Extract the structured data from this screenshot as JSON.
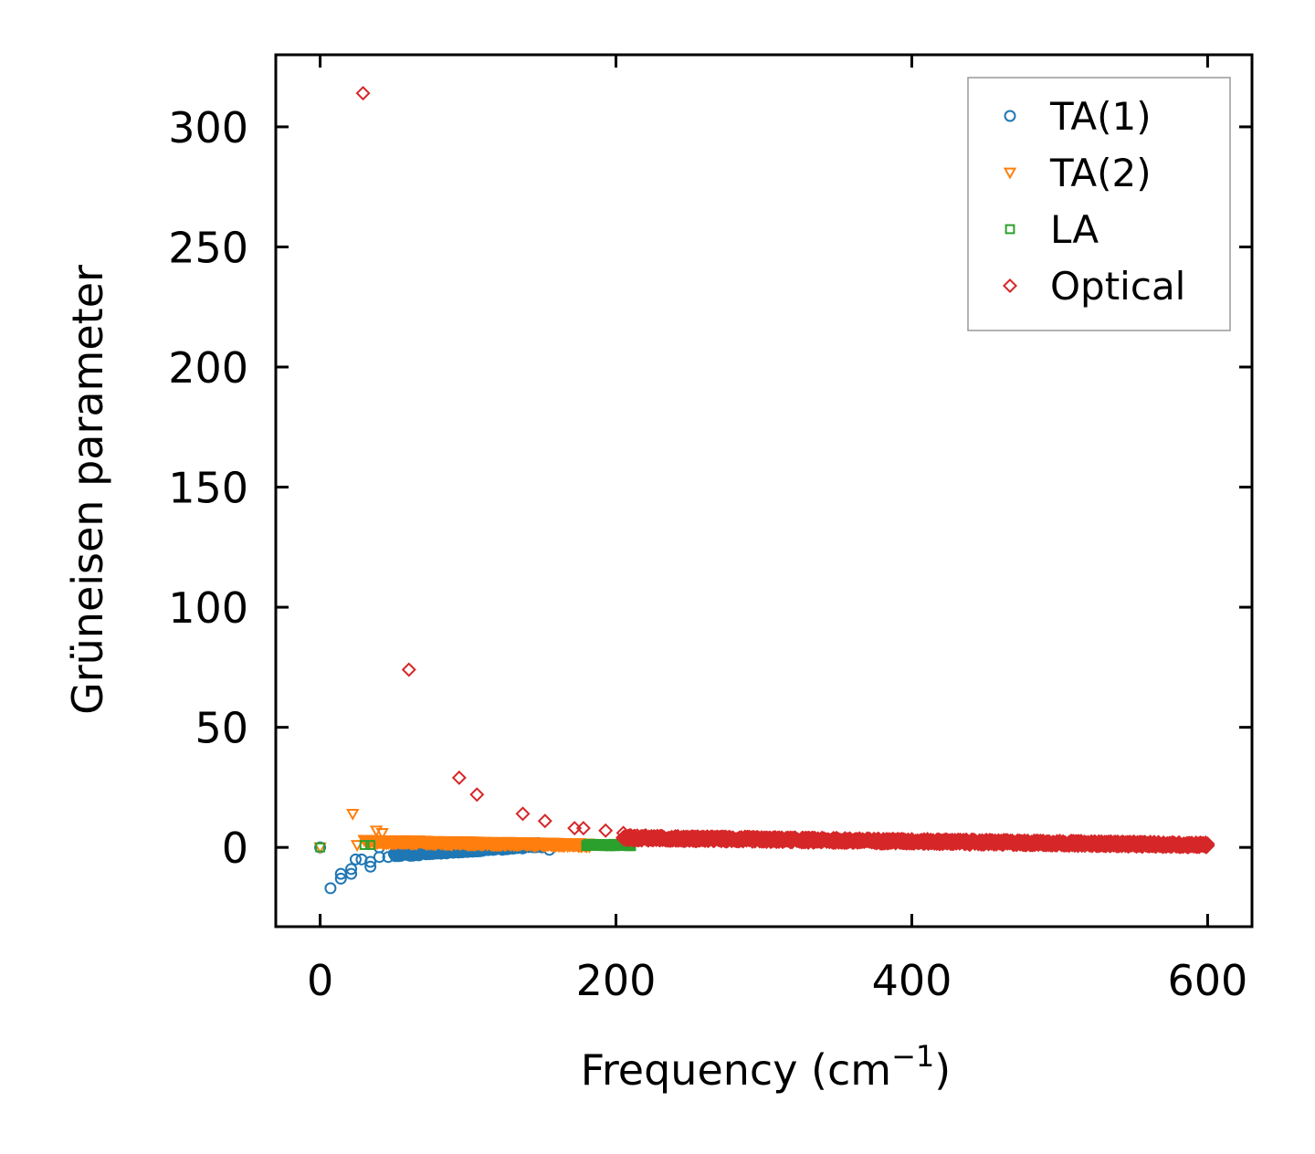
{
  "chart_data": {
    "type": "scatter",
    "title": "",
    "xlabel": "Frequency (cm",
    "xlabel_sup": "−1",
    "xlabel_close": ")",
    "ylabel": "Grüneisen parameter",
    "xlim": [
      -30,
      630
    ],
    "ylim": [
      -33,
      330
    ],
    "xticks": [
      0,
      200,
      400,
      600
    ],
    "yticks": [
      0,
      50,
      100,
      150,
      200,
      250,
      300
    ],
    "xtick_labels": [
      "0",
      "200",
      "400",
      "600"
    ],
    "ytick_labels": [
      "0",
      "50",
      "100",
      "150",
      "200",
      "250",
      "300"
    ],
    "grid": false,
    "legend_position": "top-right",
    "series": [
      {
        "name": "TA(1)",
        "marker": "circle",
        "color": "#1f77b4",
        "points": [
          [
            0,
            0
          ],
          [
            7,
            -17
          ],
          [
            14,
            -13
          ],
          [
            14,
            -11
          ],
          [
            21,
            -9
          ],
          [
            21,
            -11
          ],
          [
            24,
            -5
          ],
          [
            28,
            -5
          ],
          [
            34,
            -8
          ],
          [
            34,
            -6
          ],
          [
            40,
            -4
          ],
          [
            40,
            0
          ],
          [
            46,
            -4
          ],
          [
            52,
            -3
          ],
          [
            56,
            -2
          ],
          [
            60,
            0
          ],
          [
            64,
            -2
          ],
          [
            70,
            -1
          ],
          [
            76,
            -1
          ],
          [
            82,
            -1
          ],
          [
            88,
            0
          ],
          [
            94,
            0
          ],
          [
            100,
            0
          ],
          [
            108,
            0
          ],
          [
            115,
            1
          ],
          [
            120,
            1
          ],
          [
            126,
            1
          ],
          [
            132,
            1
          ],
          [
            138,
            1
          ],
          [
            144,
            1
          ],
          [
            150,
            0
          ],
          [
            155,
            -1
          ]
        ],
        "band": {
          "x_start": 50,
          "x_end": 148,
          "y_start": -3,
          "y_end": 1,
          "spread": 2
        }
      },
      {
        "name": "TA(2)",
        "marker": "triangle-down",
        "color": "#ff7f0e",
        "points": [
          [
            0,
            0
          ],
          [
            22,
            14
          ],
          [
            25,
            1
          ],
          [
            38,
            7
          ],
          [
            42,
            6
          ],
          [
            57,
            3
          ],
          [
            62,
            2
          ],
          [
            70,
            2
          ],
          [
            80,
            2
          ],
          [
            90,
            2
          ],
          [
            100,
            1
          ],
          [
            110,
            1
          ],
          [
            125,
            1
          ],
          [
            140,
            1
          ],
          [
            150,
            1
          ],
          [
            160,
            1
          ],
          [
            172,
            1
          ],
          [
            180,
            1
          ]
        ],
        "band": {
          "x_start": 30,
          "x_end": 182,
          "y_start": 2.5,
          "y_end": 1,
          "spread": 1.5
        }
      },
      {
        "name": "LA",
        "marker": "square",
        "color": "#2ca02c",
        "points": [
          [
            0,
            0
          ],
          [
            30,
            1
          ],
          [
            34,
            1
          ],
          [
            185,
            1
          ],
          [
            195,
            1
          ],
          [
            205,
            1
          ],
          [
            210,
            1
          ]
        ],
        "band": {
          "x_start": 180,
          "x_end": 210,
          "y_start": 1,
          "y_end": 1,
          "spread": 1
        }
      },
      {
        "name": "Optical",
        "marker": "diamond",
        "color": "#d62728",
        "points": [
          [
            29,
            314
          ],
          [
            60,
            74
          ],
          [
            94,
            29
          ],
          [
            106,
            22
          ],
          [
            137,
            14
          ],
          [
            152,
            11
          ],
          [
            172,
            8
          ],
          [
            178,
            8
          ],
          [
            193,
            7
          ],
          [
            205,
            6
          ],
          [
            210,
            5
          ],
          [
            220,
            5
          ],
          [
            240,
            4
          ],
          [
            260,
            3
          ],
          [
            290,
            3
          ],
          [
            310,
            3
          ],
          [
            330,
            2
          ],
          [
            360,
            2
          ],
          [
            400,
            2
          ],
          [
            430,
            2
          ],
          [
            450,
            2
          ],
          [
            480,
            1
          ],
          [
            520,
            1
          ],
          [
            560,
            1
          ],
          [
            580,
            1
          ],
          [
            600,
            1
          ]
        ],
        "band": {
          "x_start": 205,
          "x_end": 600,
          "y_start": 4,
          "y_end": 1,
          "spread": 2
        }
      }
    ]
  }
}
